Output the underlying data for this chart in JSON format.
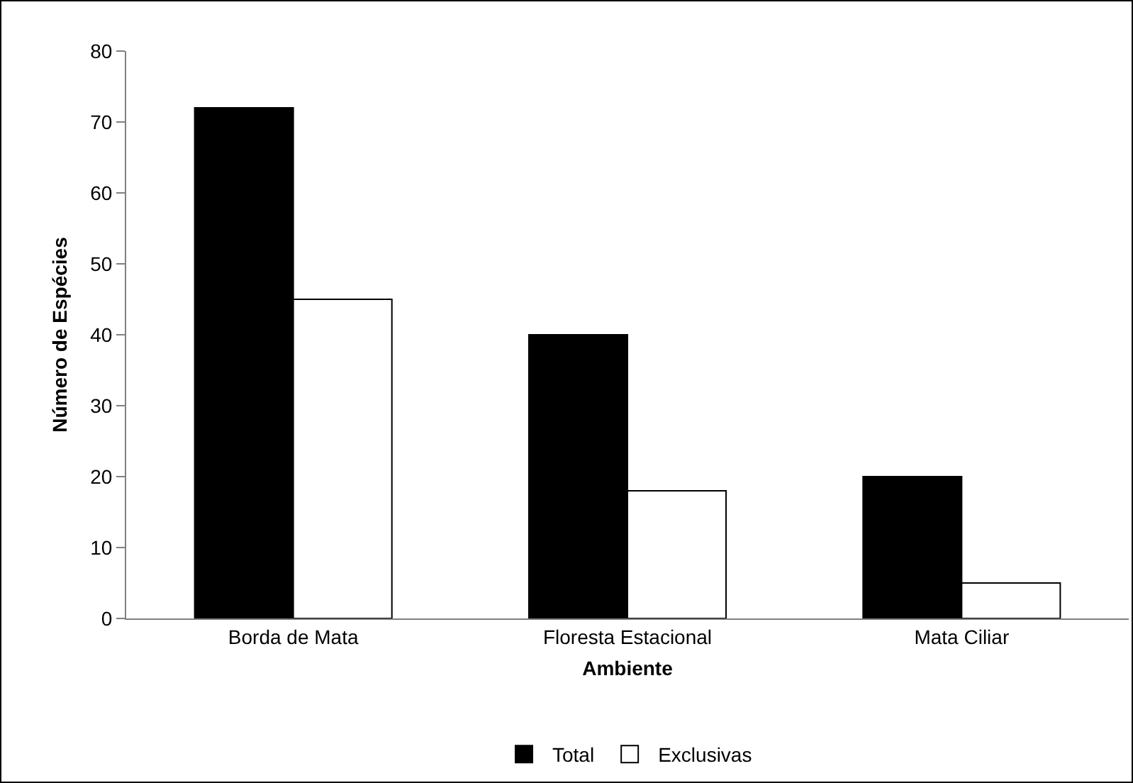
{
  "chart_data": {
    "type": "bar",
    "xlabel": "Ambiente",
    "ylabel": "Número de Espécies",
    "categories": [
      "Borda de Mata",
      "Floresta Estacional",
      "Mata Ciliar"
    ],
    "series": [
      {
        "name": "Total",
        "color": "#000000",
        "values": [
          72,
          40,
          20
        ]
      },
      {
        "name": "Exclusivas",
        "color": "#ffffff",
        "values": [
          45,
          18,
          5
        ]
      }
    ],
    "ylim": [
      0,
      80
    ],
    "yticks": [
      0,
      10,
      20,
      30,
      40,
      50,
      60,
      70,
      80
    ],
    "grid": false,
    "legend": "bottom"
  }
}
